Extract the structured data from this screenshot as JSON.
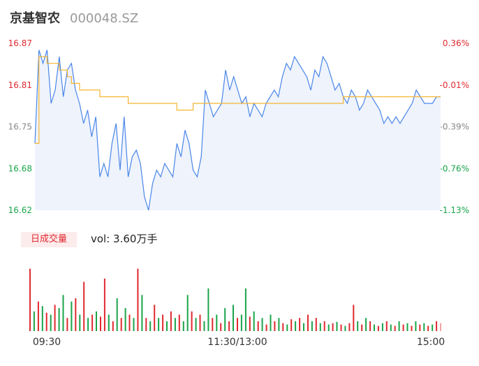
{
  "header": {
    "name": "京基智农",
    "code": "000048.SZ"
  },
  "volume_panel": {
    "tab_label": "日成交量",
    "vol_label": "vol: 3.60万手"
  },
  "colors": {
    "price_line": "#4a86e8",
    "avg_line": "#f5b431",
    "up": "#e0292f",
    "down": "#1aa44a",
    "neutral": "#888888",
    "fill": "#eef3fc"
  },
  "chart_data": [
    {
      "type": "line",
      "title": "",
      "y_ticks_left": [
        "16.87",
        "16.81",
        "16.75",
        "16.68",
        "16.62"
      ],
      "y_ticks_right": [
        "0.36%",
        "-0.01%",
        "-0.39%",
        "-0.76%",
        "-1.13%"
      ],
      "ylim": [
        16.62,
        16.87
      ],
      "prev_close": 16.812,
      "series": [
        {
          "name": "",
          "values": [
            16.72,
            16.86,
            16.84,
            16.86,
            16.78,
            16.8,
            16.85,
            16.79,
            16.83,
            16.84,
            16.8,
            16.78,
            16.75,
            16.77,
            16.73,
            16.76,
            16.67,
            16.69,
            16.67,
            16.72,
            16.75,
            16.68,
            16.76,
            16.67,
            16.7,
            16.71,
            16.69,
            16.64,
            16.62,
            16.66,
            16.68,
            16.67,
            16.69,
            16.68,
            16.67,
            16.72,
            16.7,
            16.74,
            16.72,
            16.68,
            16.67,
            16.7,
            16.8,
            16.78,
            16.76,
            16.77,
            16.78,
            16.83,
            16.8,
            16.82,
            16.8,
            16.78,
            16.79,
            16.76,
            16.78,
            16.77,
            16.76,
            16.78,
            16.79,
            16.8,
            16.79,
            16.82,
            16.84,
            16.83,
            16.85,
            16.84,
            16.83,
            16.82,
            16.8,
            16.83,
            16.82,
            16.85,
            16.84,
            16.82,
            16.8,
            16.81,
            16.79,
            16.78,
            16.8,
            16.79,
            16.77,
            16.78,
            16.8,
            16.79,
            16.78,
            16.77,
            16.75,
            16.76,
            16.75,
            16.76,
            16.75,
            16.76,
            16.77,
            16.78,
            16.8,
            16.79,
            16.78,
            16.78,
            16.78,
            16.79,
            16.79
          ],
          "color": "#4a86e8"
        },
        {
          "name": "",
          "values": [
            16.72,
            16.85,
            16.85,
            16.84,
            16.84,
            16.84,
            16.83,
            16.83,
            16.82,
            16.81,
            16.81,
            16.8,
            16.8,
            16.8,
            16.8,
            16.8,
            16.79,
            16.79,
            16.79,
            16.79,
            16.79,
            16.79,
            16.79,
            16.78,
            16.78,
            16.78,
            16.78,
            16.78,
            16.78,
            16.78,
            16.78,
            16.78,
            16.78,
            16.78,
            16.78,
            16.77,
            16.77,
            16.77,
            16.77,
            16.78,
            16.78,
            16.78,
            16.78,
            16.78,
            16.78,
            16.78,
            16.78,
            16.78,
            16.78,
            16.78,
            16.78,
            16.78,
            16.78,
            16.78,
            16.78,
            16.78,
            16.78,
            16.78,
            16.78,
            16.78,
            16.78,
            16.78,
            16.78,
            16.78,
            16.78,
            16.78,
            16.78,
            16.78,
            16.78,
            16.78,
            16.78,
            16.78,
            16.78,
            16.78,
            16.78,
            16.78,
            16.79,
            16.79,
            16.79,
            16.79,
            16.79,
            16.79,
            16.79,
            16.79,
            16.79,
            16.79,
            16.79,
            16.79,
            16.79,
            16.79,
            16.79,
            16.79,
            16.79,
            16.79,
            16.79,
            16.79,
            16.79,
            16.79,
            16.79,
            16.79,
            16.79
          ],
          "color": "#f5b431"
        }
      ]
    },
    {
      "type": "bar",
      "title": "",
      "x_ticks": [
        "09:30",
        "11:30/13:00",
        "15:00"
      ],
      "ylim": [
        0,
        100
      ],
      "values": [
        95,
        30,
        45,
        38,
        28,
        25,
        40,
        35,
        55,
        20,
        45,
        50,
        25,
        75,
        20,
        25,
        30,
        22,
        80,
        25,
        15,
        50,
        20,
        35,
        25,
        20,
        95,
        55,
        20,
        15,
        40,
        20,
        25,
        15,
        30,
        20,
        25,
        15,
        55,
        30,
        20,
        25,
        15,
        65,
        20,
        25,
        12,
        35,
        15,
        40,
        20,
        25,
        65,
        22,
        30,
        15,
        20,
        10,
        25,
        15,
        20,
        12,
        10,
        18,
        15,
        20,
        12,
        25,
        15,
        20,
        12,
        15,
        10,
        12,
        14,
        10,
        8,
        12,
        40,
        15,
        10,
        20,
        15,
        10,
        8,
        12,
        15,
        10,
        8,
        15,
        10,
        12,
        8,
        15,
        10,
        12,
        8,
        10,
        15,
        12
      ],
      "directions": [
        "up",
        "down",
        "up",
        "down",
        "up",
        "down",
        "up",
        "down",
        "down",
        "up",
        "down",
        "up",
        "down",
        "up",
        "down",
        "up",
        "down",
        "up",
        "up",
        "down",
        "up",
        "down",
        "up",
        "down",
        "up",
        "down",
        "up",
        "down",
        "up",
        "down",
        "up",
        "down",
        "up",
        "down",
        "up",
        "down",
        "up",
        "down",
        "down",
        "up",
        "down",
        "up",
        "down",
        "down",
        "up",
        "down",
        "up",
        "down",
        "up",
        "down",
        "up",
        "down",
        "down",
        "up",
        "down",
        "up",
        "down",
        "up",
        "down",
        "up",
        "down",
        "up",
        "down",
        "up",
        "down",
        "up",
        "down",
        "up",
        "down",
        "up",
        "down",
        "up",
        "down",
        "up",
        "down",
        "up",
        "down",
        "up",
        "up",
        "down",
        "up",
        "down",
        "up",
        "down",
        "up",
        "down",
        "up",
        "down",
        "up",
        "down",
        "up",
        "down",
        "up",
        "down",
        "up",
        "down",
        "up",
        "down",
        "up",
        "neutral"
      ]
    }
  ]
}
